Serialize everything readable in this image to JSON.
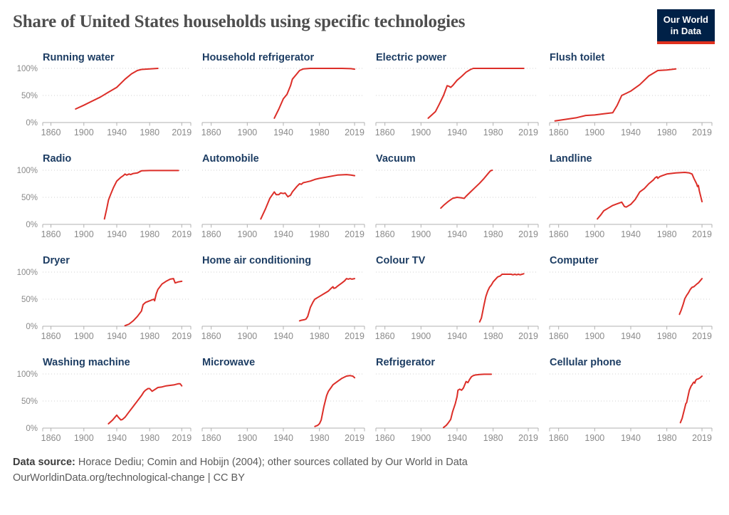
{
  "header": {
    "title": "Share of United States households using specific technologies",
    "logo": {
      "line1": "Our World",
      "line2": "in Data"
    }
  },
  "colors": {
    "line": "#dc2e28",
    "chart_title": "#1d3d63",
    "axis_text": "#8a8a8a",
    "axis_line": "#b0b0b0",
    "grid": "#d2d2d2",
    "title_text": "#4e4e4e",
    "logo_bg": "#002147",
    "logo_underline": "#e0301e"
  },
  "chart_data": {
    "type": "line",
    "unit": "%",
    "ylim": [
      0,
      100
    ],
    "xlim": [
      1850,
      2030
    ],
    "x_ticks": [
      "1860",
      "1900",
      "1940",
      "1980",
      "2019"
    ],
    "y_ticks": [
      "100%",
      "50%",
      "0%"
    ],
    "grid": "dotted horizontal at 50% and 100%",
    "legend": "none",
    "charts": [
      {
        "title": "Running water",
        "points": [
          [
            1890,
            25
          ],
          [
            1900,
            32
          ],
          [
            1920,
            47
          ],
          [
            1930,
            56
          ],
          [
            1940,
            65
          ],
          [
            1950,
            80
          ],
          [
            1958,
            90
          ],
          [
            1965,
            96
          ],
          [
            1970,
            98
          ],
          [
            1980,
            99
          ],
          [
            1990,
            100
          ]
        ]
      },
      {
        "title": "Household refrigerator",
        "points": [
          [
            1930,
            8
          ],
          [
            1935,
            25
          ],
          [
            1940,
            44
          ],
          [
            1944,
            52
          ],
          [
            1948,
            68
          ],
          [
            1950,
            80
          ],
          [
            1955,
            90
          ],
          [
            1958,
            96
          ],
          [
            1962,
            99
          ],
          [
            1970,
            100
          ],
          [
            1990,
            100
          ],
          [
            2005,
            100
          ],
          [
            2015,
            99.5
          ],
          [
            2019,
            98.5
          ]
        ]
      },
      {
        "title": "Electric power",
        "points": [
          [
            1908,
            8
          ],
          [
            1912,
            14
          ],
          [
            1916,
            20
          ],
          [
            1920,
            33
          ],
          [
            1925,
            50
          ],
          [
            1929,
            68
          ],
          [
            1931,
            67
          ],
          [
            1933,
            65
          ],
          [
            1935,
            68
          ],
          [
            1940,
            78
          ],
          [
            1945,
            85
          ],
          [
            1950,
            93
          ],
          [
            1955,
            98
          ],
          [
            1958,
            100
          ],
          [
            1970,
            100
          ],
          [
            2014,
            100
          ]
        ]
      },
      {
        "title": "Flush toilet",
        "points": [
          [
            1856,
            3
          ],
          [
            1880,
            9
          ],
          [
            1890,
            13
          ],
          [
            1900,
            14
          ],
          [
            1910,
            16
          ],
          [
            1920,
            18
          ],
          [
            1925,
            32
          ],
          [
            1930,
            50
          ],
          [
            1935,
            54
          ],
          [
            1940,
            58
          ],
          [
            1950,
            70
          ],
          [
            1960,
            86
          ],
          [
            1970,
            96
          ],
          [
            1980,
            97
          ],
          [
            1990,
            99
          ]
        ]
      },
      {
        "title": "Radio",
        "points": [
          [
            1925,
            10
          ],
          [
            1928,
            30
          ],
          [
            1930,
            45
          ],
          [
            1933,
            57
          ],
          [
            1936,
            68
          ],
          [
            1940,
            80
          ],
          [
            1945,
            87
          ],
          [
            1948,
            90
          ],
          [
            1950,
            93
          ],
          [
            1952,
            91
          ],
          [
            1955,
            93
          ],
          [
            1957,
            92
          ],
          [
            1960,
            94
          ],
          [
            1965,
            95
          ],
          [
            1970,
            99
          ],
          [
            1980,
            99.5
          ],
          [
            2015,
            99.5
          ]
        ]
      },
      {
        "title": "Automobile",
        "points": [
          [
            1915,
            10
          ],
          [
            1920,
            28
          ],
          [
            1925,
            48
          ],
          [
            1930,
            60
          ],
          [
            1932,
            55
          ],
          [
            1935,
            55
          ],
          [
            1937,
            58
          ],
          [
            1940,
            57
          ],
          [
            1942,
            58
          ],
          [
            1945,
            51
          ],
          [
            1948,
            54
          ],
          [
            1950,
            60
          ],
          [
            1955,
            70
          ],
          [
            1958,
            75
          ],
          [
            1960,
            74
          ],
          [
            1962,
            77
          ],
          [
            1965,
            78
          ],
          [
            1970,
            80
          ],
          [
            1975,
            83
          ],
          [
            1980,
            85
          ],
          [
            1990,
            88
          ],
          [
            2000,
            91
          ],
          [
            2010,
            92
          ],
          [
            2015,
            91
          ],
          [
            2019,
            90
          ]
        ]
      },
      {
        "title": "Vacuum",
        "points": [
          [
            1922,
            30
          ],
          [
            1925,
            35
          ],
          [
            1930,
            42
          ],
          [
            1935,
            48
          ],
          [
            1940,
            50
          ],
          [
            1945,
            49
          ],
          [
            1948,
            48
          ],
          [
            1950,
            52
          ],
          [
            1955,
            60
          ],
          [
            1960,
            68
          ],
          [
            1965,
            76
          ],
          [
            1970,
            85
          ],
          [
            1975,
            95
          ],
          [
            1977,
            99
          ],
          [
            1979,
            100
          ]
        ]
      },
      {
        "title": "Landline",
        "points": [
          [
            1903,
            10
          ],
          [
            1907,
            18
          ],
          [
            1910,
            25
          ],
          [
            1915,
            30
          ],
          [
            1920,
            35
          ],
          [
            1925,
            38
          ],
          [
            1930,
            41
          ],
          [
            1933,
            33
          ],
          [
            1935,
            32
          ],
          [
            1940,
            37
          ],
          [
            1945,
            46
          ],
          [
            1950,
            60
          ],
          [
            1955,
            66
          ],
          [
            1960,
            75
          ],
          [
            1965,
            82
          ],
          [
            1967,
            86
          ],
          [
            1969,
            88
          ],
          [
            1970,
            85
          ],
          [
            1972,
            88
          ],
          [
            1975,
            90
          ],
          [
            1980,
            93
          ],
          [
            1990,
            95
          ],
          [
            2000,
            96
          ],
          [
            2005,
            95
          ],
          [
            2008,
            93
          ],
          [
            2010,
            85
          ],
          [
            2013,
            75
          ],
          [
            2014,
            70
          ],
          [
            2015,
            72
          ],
          [
            2016,
            62
          ],
          [
            2019,
            42
          ]
        ]
      },
      {
        "title": "Dryer",
        "points": [
          [
            1950,
            1
          ],
          [
            1955,
            4
          ],
          [
            1960,
            10
          ],
          [
            1965,
            18
          ],
          [
            1970,
            28
          ],
          [
            1972,
            40
          ],
          [
            1975,
            44
          ],
          [
            1980,
            47
          ],
          [
            1985,
            50
          ],
          [
            1986,
            47
          ],
          [
            1988,
            60
          ],
          [
            1990,
            68
          ],
          [
            1995,
            78
          ],
          [
            2000,
            83
          ],
          [
            2005,
            87
          ],
          [
            2009,
            88
          ],
          [
            2011,
            80
          ],
          [
            2015,
            82
          ],
          [
            2019,
            83
          ]
        ]
      },
      {
        "title": "Home air conditioning",
        "points": [
          [
            1958,
            10
          ],
          [
            1960,
            11
          ],
          [
            1963,
            12
          ],
          [
            1965,
            13
          ],
          [
            1967,
            18
          ],
          [
            1970,
            35
          ],
          [
            1973,
            45
          ],
          [
            1975,
            50
          ],
          [
            1980,
            55
          ],
          [
            1985,
            60
          ],
          [
            1990,
            65
          ],
          [
            1993,
            70
          ],
          [
            1995,
            73
          ],
          [
            1996,
            70
          ],
          [
            1998,
            71
          ],
          [
            2000,
            74
          ],
          [
            2005,
            80
          ],
          [
            2008,
            84
          ],
          [
            2010,
            88
          ],
          [
            2012,
            87
          ],
          [
            2014,
            88
          ],
          [
            2016,
            87
          ],
          [
            2019,
            88
          ]
        ]
      },
      {
        "title": "Colour TV",
        "points": [
          [
            1965,
            8
          ],
          [
            1967,
            15
          ],
          [
            1970,
            40
          ],
          [
            1972,
            55
          ],
          [
            1974,
            65
          ],
          [
            1976,
            72
          ],
          [
            1978,
            76
          ],
          [
            1980,
            82
          ],
          [
            1985,
            91
          ],
          [
            1988,
            93
          ],
          [
            1990,
            96
          ],
          [
            1995,
            96
          ],
          [
            2000,
            96
          ],
          [
            2002,
            95
          ],
          [
            2004,
            96
          ],
          [
            2006,
            95
          ],
          [
            2008,
            96
          ],
          [
            2010,
            95
          ],
          [
            2012,
            96
          ],
          [
            2014,
            97
          ]
        ]
      },
      {
        "title": "Computer",
        "points": [
          [
            1994,
            22
          ],
          [
            1996,
            30
          ],
          [
            1998,
            40
          ],
          [
            2000,
            51
          ],
          [
            2002,
            57
          ],
          [
            2004,
            62
          ],
          [
            2006,
            68
          ],
          [
            2008,
            72
          ],
          [
            2010,
            73
          ],
          [
            2012,
            76
          ],
          [
            2014,
            79
          ],
          [
            2015,
            80
          ],
          [
            2017,
            84
          ],
          [
            2019,
            88
          ]
        ]
      },
      {
        "title": "Washing machine",
        "points": [
          [
            1930,
            8
          ],
          [
            1935,
            15
          ],
          [
            1940,
            24
          ],
          [
            1942,
            20
          ],
          [
            1945,
            15
          ],
          [
            1947,
            16
          ],
          [
            1950,
            20
          ],
          [
            1955,
            30
          ],
          [
            1960,
            40
          ],
          [
            1965,
            50
          ],
          [
            1970,
            60
          ],
          [
            1973,
            67
          ],
          [
            1975,
            70
          ],
          [
            1978,
            73
          ],
          [
            1980,
            73
          ],
          [
            1983,
            68
          ],
          [
            1985,
            70
          ],
          [
            1990,
            75
          ],
          [
            1995,
            76
          ],
          [
            2000,
            78
          ],
          [
            2005,
            79
          ],
          [
            2010,
            80
          ],
          [
            2015,
            82
          ],
          [
            2017,
            82
          ],
          [
            2019,
            78
          ]
        ]
      },
      {
        "title": "Microwave",
        "points": [
          [
            1975,
            3
          ],
          [
            1978,
            5
          ],
          [
            1980,
            8
          ],
          [
            1982,
            15
          ],
          [
            1985,
            40
          ],
          [
            1988,
            60
          ],
          [
            1990,
            68
          ],
          [
            1993,
            75
          ],
          [
            1995,
            80
          ],
          [
            2000,
            86
          ],
          [
            2005,
            92
          ],
          [
            2010,
            96
          ],
          [
            2014,
            97
          ],
          [
            2017,
            96
          ],
          [
            2019,
            93
          ]
        ]
      },
      {
        "title": "Refrigerator",
        "points": [
          [
            1925,
            1
          ],
          [
            1928,
            5
          ],
          [
            1930,
            9
          ],
          [
            1933,
            16
          ],
          [
            1935,
            30
          ],
          [
            1938,
            45
          ],
          [
            1940,
            58
          ],
          [
            1941,
            70
          ],
          [
            1943,
            72
          ],
          [
            1945,
            70
          ],
          [
            1947,
            74
          ],
          [
            1949,
            82
          ],
          [
            1950,
            86
          ],
          [
            1952,
            84
          ],
          [
            1954,
            90
          ],
          [
            1956,
            95
          ],
          [
            1958,
            97
          ],
          [
            1960,
            98
          ],
          [
            1965,
            99
          ],
          [
            1970,
            99.5
          ],
          [
            1978,
            99.5
          ]
        ]
      },
      {
        "title": "Cellular phone",
        "points": [
          [
            1995,
            10
          ],
          [
            1997,
            18
          ],
          [
            1998,
            25
          ],
          [
            2000,
            38
          ],
          [
            2001,
            45
          ],
          [
            2002,
            47
          ],
          [
            2003,
            55
          ],
          [
            2005,
            70
          ],
          [
            2007,
            78
          ],
          [
            2008,
            80
          ],
          [
            2009,
            83
          ],
          [
            2010,
            85
          ],
          [
            2011,
            83
          ],
          [
            2012,
            88
          ],
          [
            2013,
            90
          ],
          [
            2015,
            91
          ],
          [
            2017,
            93
          ],
          [
            2019,
            96
          ]
        ]
      }
    ]
  },
  "footer": {
    "source_label": "Data source:",
    "source_text": "Horace Dediu; Comin and Hobijn (2004); other sources collated by Our World in Data",
    "license_line": "OurWorldinData.org/technological-change | CC BY"
  }
}
